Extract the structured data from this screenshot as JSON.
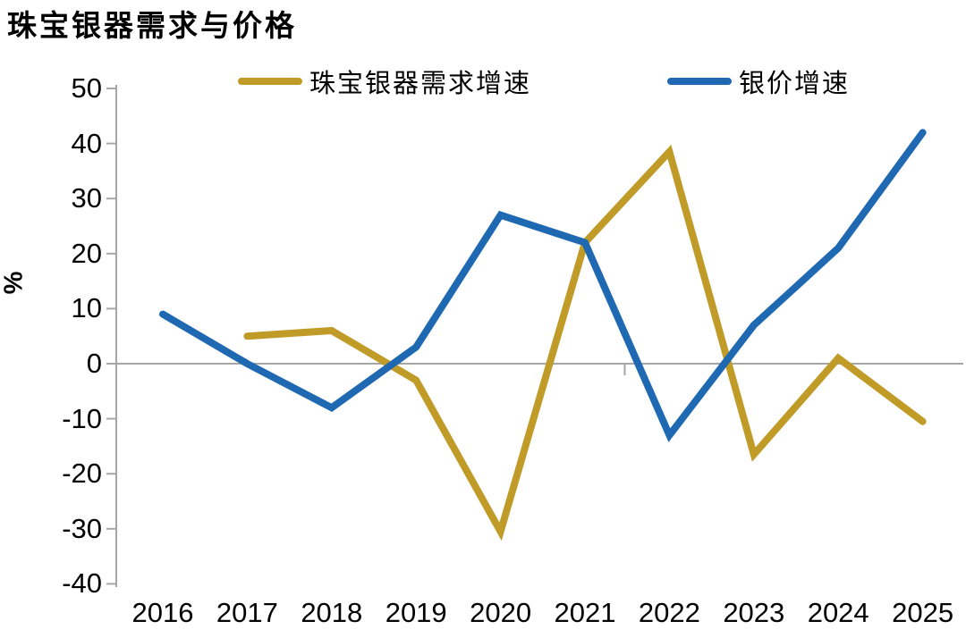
{
  "title": "珠宝银器需求与价格",
  "chart_data": {
    "type": "line",
    "title": "珠宝银器需求与价格",
    "xlabel": "",
    "ylabel": "%",
    "categories": [
      "2016",
      "2017",
      "2018",
      "2019",
      "2020",
      "2021",
      "2022",
      "2023",
      "2024",
      "2025"
    ],
    "series": [
      {
        "name": "珠宝银器需求增速",
        "color": "#C19B28",
        "values": [
          null,
          5,
          6,
          -3,
          -30.5,
          22,
          38.5,
          -16.5,
          1,
          -10.5
        ]
      },
      {
        "name": "银价增速",
        "color": "#1F68B2",
        "values": [
          9,
          0,
          -8,
          3,
          27,
          22,
          -13,
          7,
          21,
          42
        ]
      }
    ],
    "ylim": [
      -40,
      50
    ],
    "ytick_step": 10,
    "yticks": [
      50,
      40,
      30,
      20,
      10,
      0,
      -10,
      -20,
      -30,
      -40
    ],
    "legend_position": "top",
    "grid": "zero-line-only"
  },
  "colors": {
    "axis": "#A6A6A6",
    "text": "#000000",
    "background": "#FFFFFF"
  }
}
